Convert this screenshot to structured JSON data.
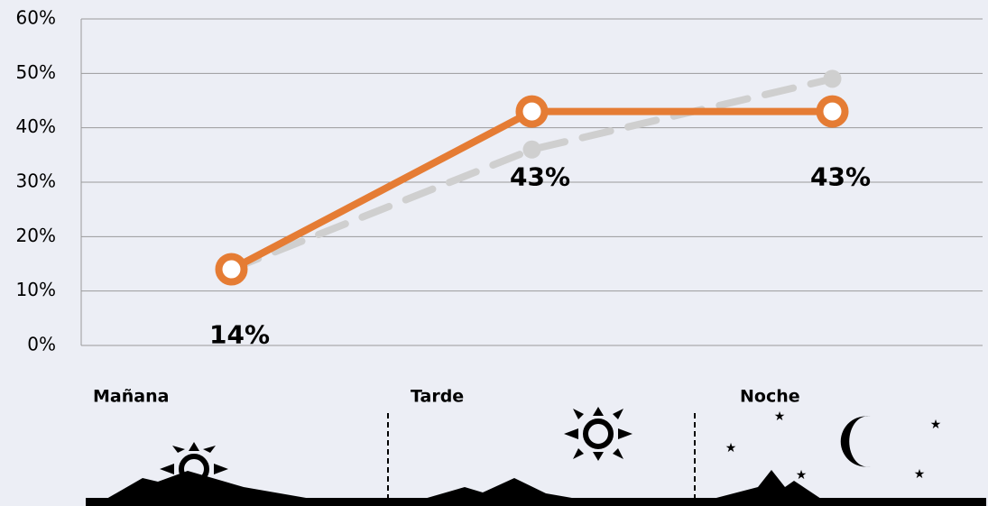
{
  "chart_data": {
    "type": "line",
    "categories": [
      "Mañana",
      "Tarde",
      "Noche"
    ],
    "series": [
      {
        "color": "#cfcfcf",
        "dashed": true,
        "values": [
          14,
          36,
          49
        ]
      },
      {
        "color": "#e57c34",
        "dashed": false,
        "values": [
          14,
          43,
          43
        ],
        "value_labels": [
          "14%",
          "43%",
          "43%"
        ]
      }
    ],
    "ylim": [
      0,
      60
    ],
    "yticks": [
      {
        "value": 0,
        "label": "0%"
      },
      {
        "value": 10,
        "label": "10%"
      },
      {
        "value": 20,
        "label": "20%"
      },
      {
        "value": 30,
        "label": "30%"
      },
      {
        "value": 40,
        "label": "40%"
      },
      {
        "value": 50,
        "label": "50%"
      },
      {
        "value": 60,
        "label": "60%"
      }
    ],
    "grid": true
  }
}
